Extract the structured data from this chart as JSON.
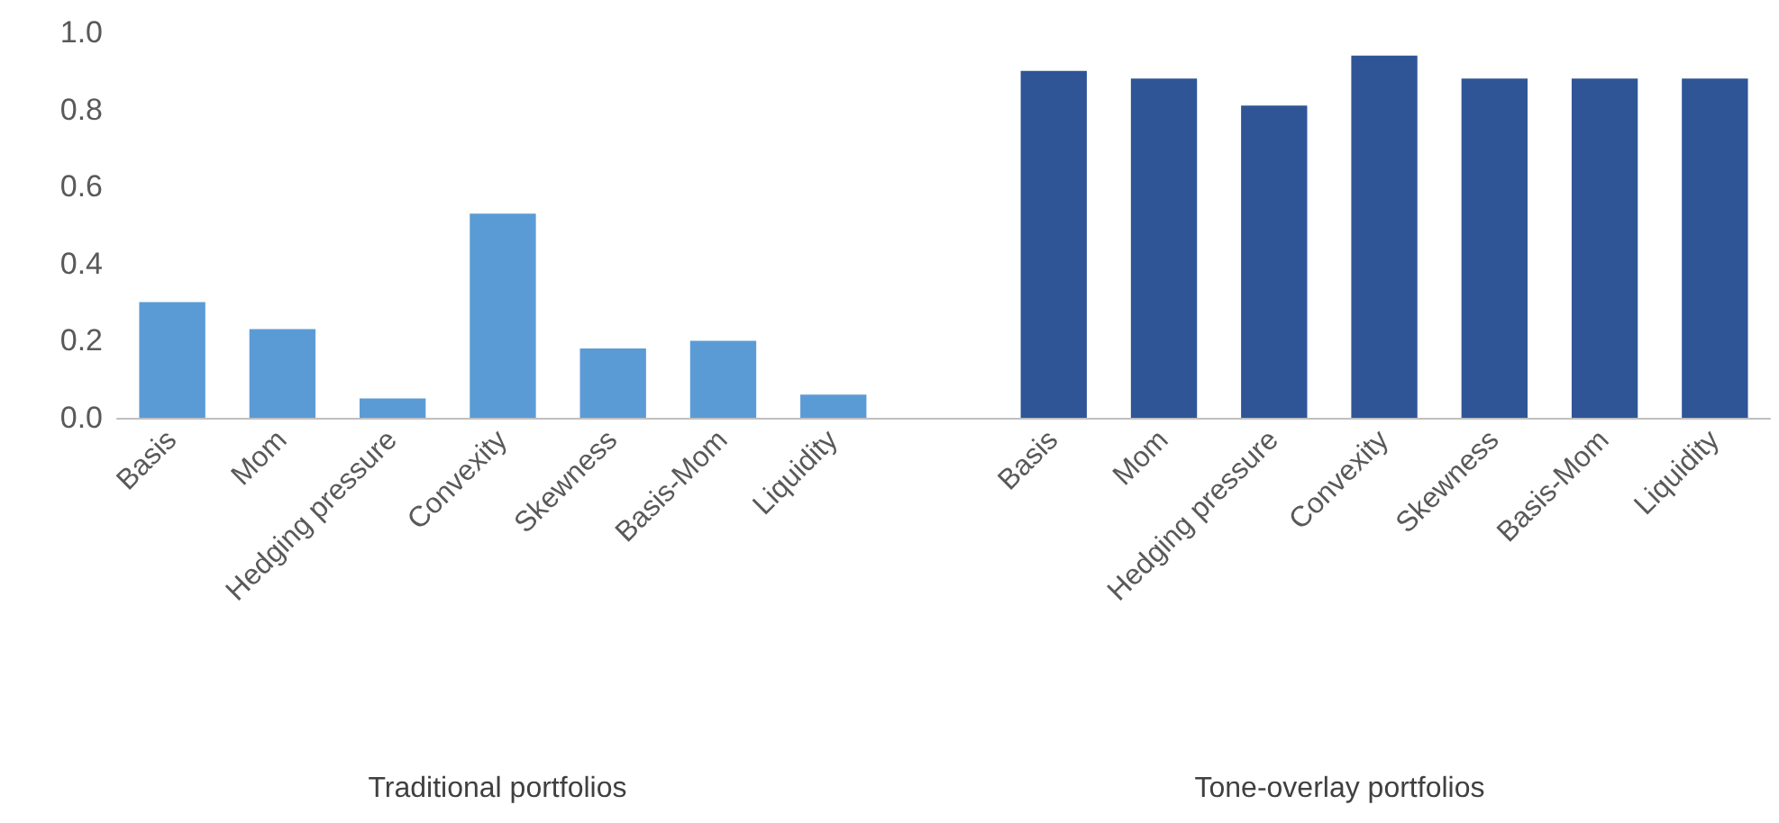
{
  "chart_data": {
    "type": "bar",
    "categories": [
      "Basis",
      "Mom",
      "Hedging pressure",
      "Convexity",
      "Skewness",
      "Basis-Mom",
      "Liquidity",
      null,
      "Basis",
      "Mom",
      "Hedging pressure",
      "Convexity",
      "Skewness",
      "Basis-Mom",
      "Liquidity"
    ],
    "series": [
      {
        "color": "#5b9bd5",
        "values": [
          0.3,
          0.23,
          0.05,
          0.53,
          0.18,
          0.2,
          0.06,
          null,
          null,
          null,
          null,
          null,
          null,
          null,
          null
        ]
      },
      {
        "color": "#2f5597",
        "values": [
          null,
          null,
          null,
          null,
          null,
          null,
          null,
          null,
          0.9,
          0.88,
          0.81,
          0.94,
          0.88,
          0.88,
          0.88
        ]
      }
    ],
    "ylim": [
      0,
      1.0
    ],
    "yticks": [
      {
        "value": 0,
        "label": "0.0"
      },
      0.2,
      0.4,
      0.6,
      0.8,
      {
        "value": 1,
        "label": "1.0"
      }
    ],
    "annotations": [
      "Traditional portfolios",
      "Tone-overlay portfolios"
    ]
  }
}
